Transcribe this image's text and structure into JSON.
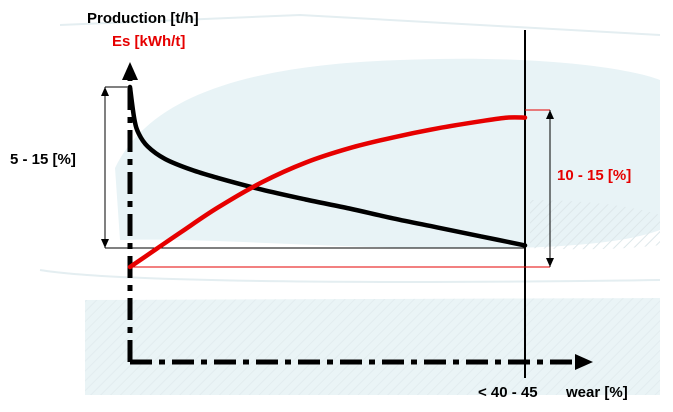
{
  "chart_data": {
    "type": "line",
    "ylabel_primary": "Production [t/h]",
    "ylabel_secondary": "Es [kWh/t]",
    "xlabel": "wear [%]",
    "x_tick_label": "< 40 - 45",
    "xlim": [
      0,
      45
    ],
    "ylim": [
      0,
      100
    ],
    "grid": false,
    "legend": "none",
    "series": [
      {
        "name": "Production [t/h]",
        "color": "#000000",
        "x": [
          0,
          0.5,
          1,
          2,
          4,
          7,
          10,
          15,
          20,
          25,
          30,
          35,
          40,
          45
        ],
        "y": [
          100,
          82,
          74,
          67,
          60,
          54,
          49.5,
          43,
          37.5,
          32.5,
          27,
          22,
          17,
          12
        ]
      },
      {
        "name": "Es [kWh/t]",
        "color": "#e60000",
        "x": [
          0,
          3,
          6,
          10,
          15,
          20,
          25,
          30,
          35,
          40,
          43,
          45
        ],
        "y": [
          0,
          10,
          20,
          33,
          47,
          58,
          66,
          72,
          77,
          81,
          83,
          83
        ]
      }
    ],
    "annotations": [
      {
        "text": "5 - 15 [%]",
        "color": "#000000"
      },
      {
        "text": "10 - 15  [%]",
        "color": "#e60000"
      }
    ]
  },
  "colors": {
    "axis": "#000000",
    "production": "#000000",
    "energy": "#e60000",
    "background_shape": "#e6f2f4"
  }
}
